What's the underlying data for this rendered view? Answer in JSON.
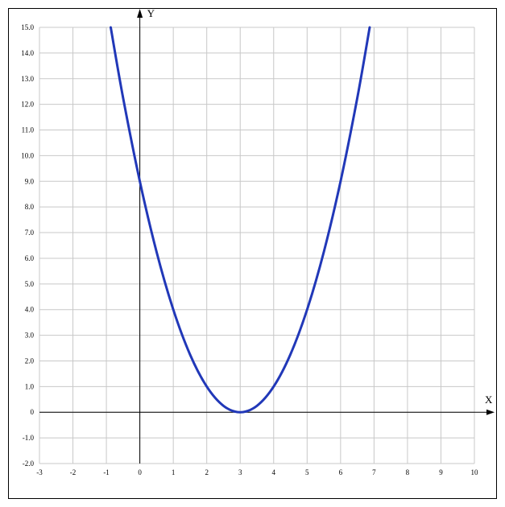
{
  "chart_data": {
    "type": "line",
    "title": "",
    "xlabel": "X",
    "ylabel": "Y",
    "xlim": [
      -3,
      10
    ],
    "ylim": [
      -2,
      15
    ],
    "grid": true,
    "x_ticks": [
      -3,
      -2,
      -1,
      0,
      1,
      2,
      3,
      4,
      5,
      6,
      7,
      8,
      9,
      10
    ],
    "x_tick_labels": [
      "-3",
      "-2",
      "-1",
      "0",
      "1",
      "2",
      "3",
      "4",
      "5",
      "6",
      "7",
      "8",
      "9",
      "10"
    ],
    "y_ticks": [
      -2,
      -1,
      0,
      1,
      2,
      3,
      4,
      5,
      6,
      7,
      8,
      9,
      10,
      11,
      12,
      13,
      14,
      15
    ],
    "y_tick_labels": [
      "-2.0",
      "-1.0",
      "0",
      "1.0",
      "2.0",
      "3.0",
      "4.0",
      "5.0",
      "6.0",
      "7.0",
      "8.0",
      "9.0",
      "10.0",
      "11.0",
      "12.0",
      "13.0",
      "14.0",
      "15.0"
    ],
    "series": [
      {
        "color": "#2138b8",
        "x": [
          -0.87,
          -0.5,
          0,
          0.5,
          1,
          1.5,
          2,
          2.5,
          3,
          3.5,
          4,
          4.5,
          5,
          5.5,
          6,
          6.5,
          6.87
        ],
        "y": [
          15.0,
          12.25,
          9.0,
          6.25,
          4.0,
          2.25,
          1.0,
          0.25,
          0.0,
          0.25,
          1.0,
          2.25,
          4.0,
          6.25,
          9.0,
          12.25,
          15.0
        ]
      }
    ]
  }
}
